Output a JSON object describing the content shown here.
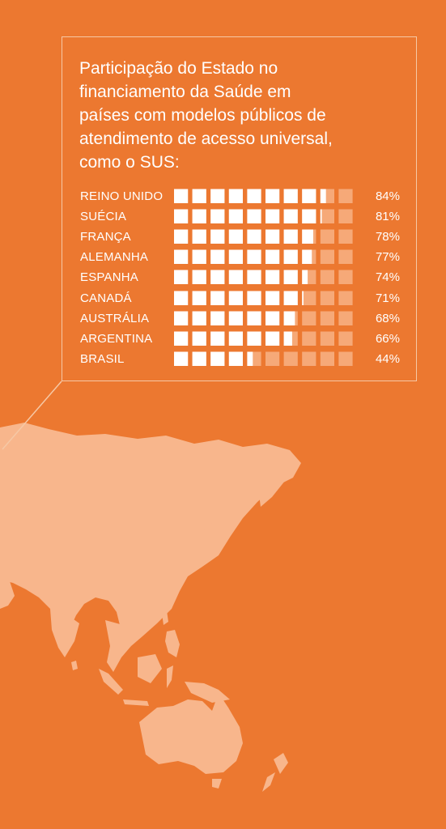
{
  "title": "Participação do Estado no\nfinanciamento da Saúde em\npaíses com modelos públicos de\natendimento de acesso universal,\ncomo o SUS:",
  "colors": {
    "background": "#ec7830",
    "filled_block": "#ffffff",
    "empty_block": "#f6a978",
    "map_land": "#f8b68c",
    "border": "#f6c8a5"
  },
  "chart_data": {
    "type": "bar",
    "style": "waffle-row-10-blocks",
    "title": "Participação do Estado no financiamento da Saúde em países com modelos públicos de atendimento de acesso universal, como o SUS:",
    "unit": "%",
    "categories": [
      "REINO UNIDO",
      "SUÉCIA",
      "FRANÇA",
      "ALEMANHA",
      "ESPANHA",
      "CANADÁ",
      "AUSTRÁLIA",
      "ARGENTINA",
      "BRASIL"
    ],
    "values": [
      84,
      81,
      78,
      77,
      74,
      71,
      68,
      66,
      44
    ],
    "value_labels": [
      "84%",
      "81%",
      "78%",
      "77%",
      "74%",
      "71%",
      "68%",
      "66%",
      "44%"
    ],
    "ylim": [
      0,
      100
    ]
  }
}
